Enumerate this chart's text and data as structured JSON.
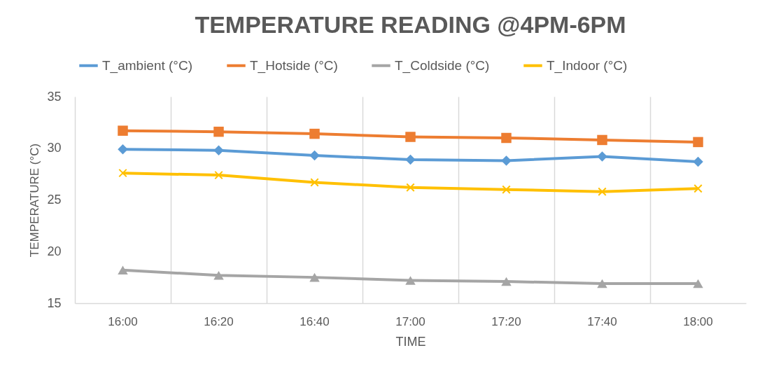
{
  "chart_data": {
    "type": "line",
    "title": "TEMPERATURE READING @4PM-6PM",
    "xlabel": "TIME",
    "ylabel": "TEMPERATURE (°C)",
    "categories": [
      "16:00",
      "16:20",
      "16:40",
      "17:00",
      "17:20",
      "17:40",
      "18:00"
    ],
    "series": [
      {
        "name": "T_ambient (°C)",
        "color": "#5b9bd5",
        "marker": "diamond",
        "values": [
          29.9,
          29.8,
          29.3,
          28.9,
          28.8,
          29.2,
          28.7
        ]
      },
      {
        "name": "T_Hotside (°C)",
        "color": "#ed7d31",
        "marker": "square",
        "values": [
          31.7,
          31.6,
          31.4,
          31.1,
          31.0,
          30.8,
          30.6
        ]
      },
      {
        "name": "T_Coldside (°C)",
        "color": "#a5a5a5",
        "marker": "triangle",
        "values": [
          18.2,
          17.7,
          17.5,
          17.2,
          17.1,
          16.9,
          16.9
        ]
      },
      {
        "name": "T_Indoor (°C)",
        "color": "#ffc000",
        "marker": "cross",
        "values": [
          27.6,
          27.4,
          26.7,
          26.2,
          26.0,
          25.8,
          26.1
        ]
      }
    ],
    "ylim": [
      15,
      35
    ],
    "yticks": [
      15,
      20,
      25,
      30,
      35
    ],
    "grid": "x",
    "legend": "top"
  }
}
